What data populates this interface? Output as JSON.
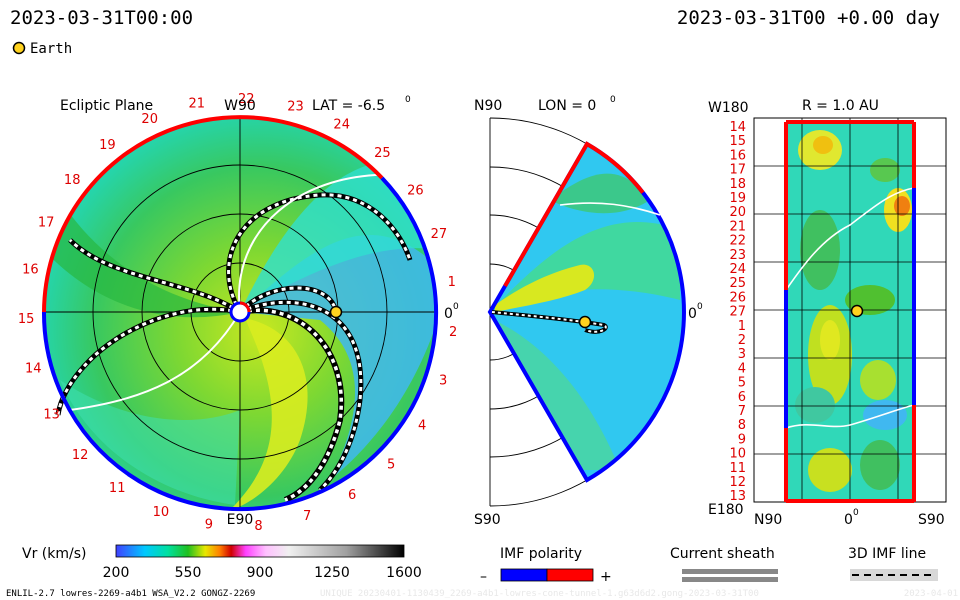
{
  "header": {
    "left_time": "2023-03-31T00:00",
    "right_time": "2023-03-31T00 +0.00 day",
    "legend_label": "Earth",
    "earth_color": "#ffd21e"
  },
  "ecliptic": {
    "title": "Ecliptic Plane",
    "top_label": "W90",
    "bottom_label": "E90",
    "lat_label": "LAT = -6.5",
    "deg_symbol": "0",
    "right_label": "0",
    "days": [
      "1",
      "2",
      "3",
      "4",
      "5",
      "6",
      "7",
      "8",
      "9",
      "10",
      "11",
      "12",
      "13",
      "14",
      "15",
      "16",
      "17",
      "18",
      "19",
      "20",
      "21",
      "22",
      "23",
      "24",
      "25",
      "26",
      "27"
    ]
  },
  "meridional": {
    "top_label": "N90",
    "bottom_label": "S90",
    "lon_label": "LON = 0",
    "deg_symbol": "0",
    "right_label": "0"
  },
  "shell": {
    "top_label": "W180",
    "r_label": "R = 1.0 AU",
    "bottom_left": "E180",
    "bottom_n": "N90",
    "bottom_mid": "0",
    "bottom_s": "S90",
    "deg_symbol": "0",
    "days": [
      "14",
      "15",
      "16",
      "17",
      "18",
      "19",
      "20",
      "21",
      "22",
      "23",
      "24",
      "25",
      "26",
      "27",
      "1",
      "2",
      "3",
      "4",
      "5",
      "6",
      "7",
      "8",
      "9",
      "10",
      "11",
      "12",
      "13"
    ]
  },
  "colorbar": {
    "label": "Vr (km/s)",
    "ticks": [
      "200",
      "550",
      "900",
      "1250",
      "1600"
    ],
    "min": 200,
    "max": 1600
  },
  "legends": {
    "imf_title": "IMF polarity",
    "imf_minus": "–",
    "imf_plus": "+",
    "imf_neg_color": "#0000ff",
    "imf_pos_color": "#ff0000",
    "sheath_title": "Current sheath",
    "imf_line_title": "3D IMF line"
  },
  "footer": {
    "model": "ENLIL-2.7 lowres-2269-a4b1 WSA_V2.2 GONGZ-2269",
    "run_id": "UNIQUE 20230401-1130439_2269-a4b1-lowres-cone-tunnel-1.g63d6d2.gong-2023-03-31T00",
    "date": "2023-04-01"
  }
}
